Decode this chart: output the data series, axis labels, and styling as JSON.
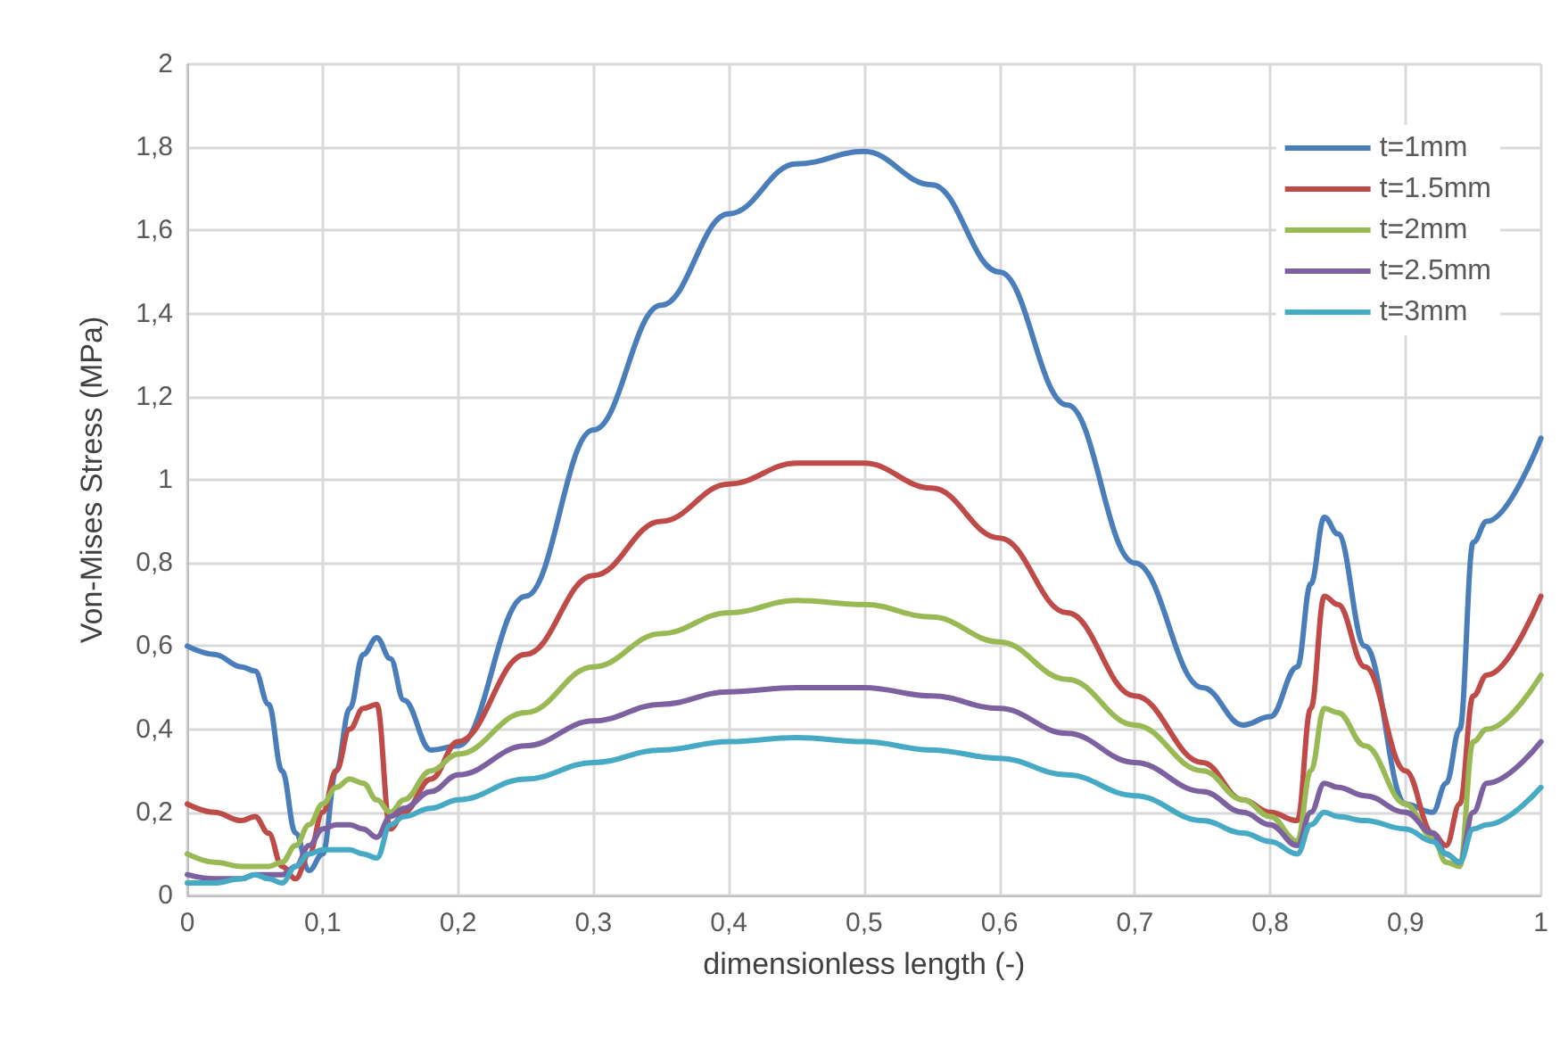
{
  "chart_data": {
    "type": "line",
    "xlabel": "dimensionless length (-)",
    "ylabel": "Von-Mises Stress (MPa)",
    "x": [
      0,
      0.02,
      0.04,
      0.05,
      0.06,
      0.07,
      0.08,
      0.09,
      0.1,
      0.11,
      0.12,
      0.13,
      0.14,
      0.15,
      0.16,
      0.18,
      0.2,
      0.25,
      0.3,
      0.35,
      0.4,
      0.45,
      0.5,
      0.55,
      0.6,
      0.65,
      0.7,
      0.75,
      0.78,
      0.8,
      0.82,
      0.83,
      0.84,
      0.85,
      0.87,
      0.9,
      0.92,
      0.93,
      0.94,
      0.95,
      0.96,
      1.0
    ],
    "series": [
      {
        "name": "t=1mm",
        "color": "#4a7ebb",
        "values": [
          0.6,
          0.58,
          0.55,
          0.54,
          0.46,
          0.3,
          0.15,
          0.06,
          0.1,
          0.3,
          0.45,
          0.58,
          0.62,
          0.57,
          0.47,
          0.35,
          0.36,
          0.72,
          1.12,
          1.42,
          1.64,
          1.76,
          1.79,
          1.71,
          1.5,
          1.18,
          0.8,
          0.5,
          0.41,
          0.43,
          0.55,
          0.75,
          0.91,
          0.87,
          0.6,
          0.22,
          0.2,
          0.27,
          0.4,
          0.85,
          0.9,
          1.1
        ]
      },
      {
        "name": "t=1.5mm",
        "color": "#be4b48",
        "values": [
          0.22,
          0.2,
          0.18,
          0.19,
          0.15,
          0.07,
          0.04,
          0.1,
          0.2,
          0.3,
          0.4,
          0.45,
          0.46,
          0.16,
          0.2,
          0.28,
          0.37,
          0.58,
          0.77,
          0.9,
          0.99,
          1.04,
          1.04,
          0.98,
          0.86,
          0.68,
          0.48,
          0.32,
          0.23,
          0.2,
          0.18,
          0.45,
          0.72,
          0.7,
          0.55,
          0.3,
          0.15,
          0.12,
          0.22,
          0.48,
          0.53,
          0.72
        ]
      },
      {
        "name": "t=2mm",
        "color": "#98b954",
        "values": [
          0.1,
          0.08,
          0.07,
          0.07,
          0.07,
          0.08,
          0.12,
          0.17,
          0.22,
          0.26,
          0.28,
          0.27,
          0.23,
          0.2,
          0.23,
          0.3,
          0.34,
          0.44,
          0.55,
          0.63,
          0.68,
          0.71,
          0.7,
          0.67,
          0.61,
          0.52,
          0.41,
          0.3,
          0.23,
          0.19,
          0.13,
          0.3,
          0.45,
          0.44,
          0.36,
          0.22,
          0.14,
          0.08,
          0.07,
          0.37,
          0.4,
          0.53
        ]
      },
      {
        "name": "t=2.5mm",
        "color": "#7d60a0",
        "values": [
          0.05,
          0.04,
          0.04,
          0.05,
          0.05,
          0.05,
          0.07,
          0.12,
          0.16,
          0.17,
          0.17,
          0.16,
          0.14,
          0.19,
          0.21,
          0.25,
          0.29,
          0.36,
          0.42,
          0.46,
          0.49,
          0.5,
          0.5,
          0.48,
          0.45,
          0.39,
          0.32,
          0.25,
          0.2,
          0.17,
          0.12,
          0.2,
          0.27,
          0.26,
          0.24,
          0.2,
          0.15,
          0.1,
          0.08,
          0.2,
          0.27,
          0.37
        ]
      },
      {
        "name": "t=3mm",
        "color": "#46aac5",
        "values": [
          0.03,
          0.03,
          0.04,
          0.05,
          0.04,
          0.03,
          0.07,
          0.1,
          0.11,
          0.11,
          0.11,
          0.1,
          0.09,
          0.17,
          0.19,
          0.21,
          0.23,
          0.28,
          0.32,
          0.35,
          0.37,
          0.38,
          0.37,
          0.35,
          0.33,
          0.29,
          0.24,
          0.18,
          0.15,
          0.13,
          0.1,
          0.17,
          0.2,
          0.19,
          0.18,
          0.16,
          0.13,
          0.1,
          0.08,
          0.16,
          0.17,
          0.26
        ]
      }
    ],
    "xlim": [
      0,
      1
    ],
    "xticks": [
      0,
      {
        "value": 0.1,
        "label": "0,1"
      },
      {
        "value": 0.2,
        "label": "0,2"
      },
      {
        "value": 0.3,
        "label": "0,3"
      },
      {
        "value": 0.4,
        "label": "0,4"
      },
      {
        "value": 0.5,
        "label": "0,5"
      },
      {
        "value": 0.6,
        "label": "0,6"
      },
      {
        "value": 0.7,
        "label": "0,7"
      },
      {
        "value": 0.8,
        "label": "0,8"
      },
      {
        "value": 0.9,
        "label": "0,9"
      },
      1
    ],
    "ylim": [
      0,
      2
    ],
    "yticks": [
      0,
      {
        "value": 0.2,
        "label": "0,2"
      },
      {
        "value": 0.4,
        "label": "0,4"
      },
      {
        "value": 0.6,
        "label": "0,6"
      },
      {
        "value": 0.8,
        "label": "0,8"
      },
      1,
      {
        "value": 1.2,
        "label": "1,2"
      },
      {
        "value": 1.4,
        "label": "1,4"
      },
      {
        "value": 1.6,
        "label": "1,6"
      },
      {
        "value": 1.8,
        "label": "1,8"
      },
      2
    ],
    "grid": true,
    "legend": "top right",
    "marker": "none",
    "line_style": "solid"
  }
}
